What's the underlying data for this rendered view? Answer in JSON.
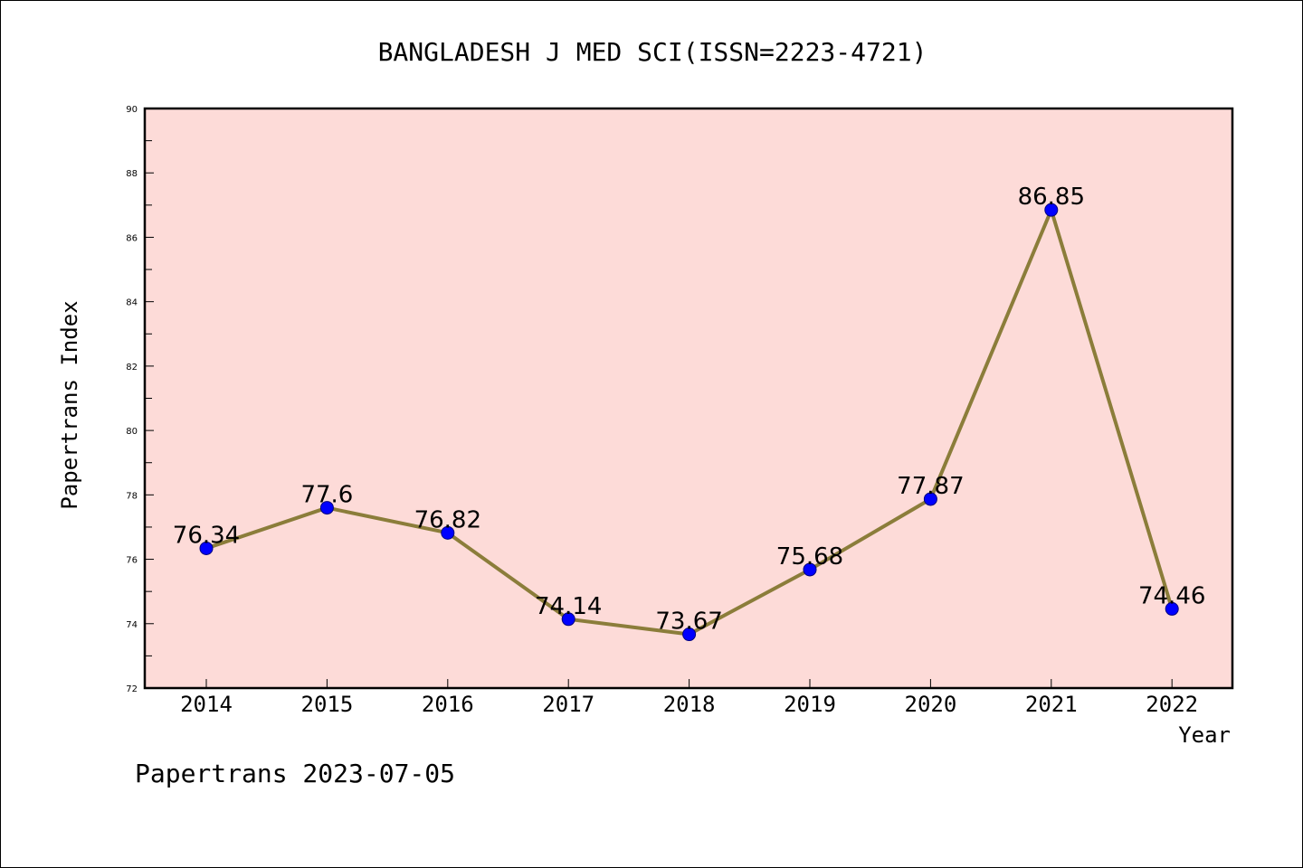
{
  "chart_data": {
    "type": "line",
    "title": "BANGLADESH J MED SCI(ISSN=2223-4721)",
    "xlabel": "Year",
    "ylabel": "Papertrans Index",
    "footer": "Papertrans 2023-07-05",
    "categories": [
      "2014",
      "2015",
      "2016",
      "2017",
      "2018",
      "2019",
      "2020",
      "2021",
      "2022"
    ],
    "series": [
      {
        "values": [
          76.34,
          77.6,
          76.82,
          74.14,
          73.67,
          75.68,
          77.87,
          86.85,
          74.46
        ],
        "data_labels": [
          "76.34",
          "77.6",
          "76.82",
          "74.14",
          "73.67",
          "75.68",
          "77.87",
          "86.85",
          "74.46"
        ]
      }
    ],
    "ylim": [
      72,
      90
    ],
    "yticks": [
      "72",
      "74",
      "76",
      "78",
      "80",
      "82",
      "84",
      "86",
      "88",
      "90"
    ],
    "grid": false,
    "colors": {
      "plot_background": "#fddbd8",
      "line": "#8b7d3a",
      "marker": "#0000ff"
    }
  }
}
